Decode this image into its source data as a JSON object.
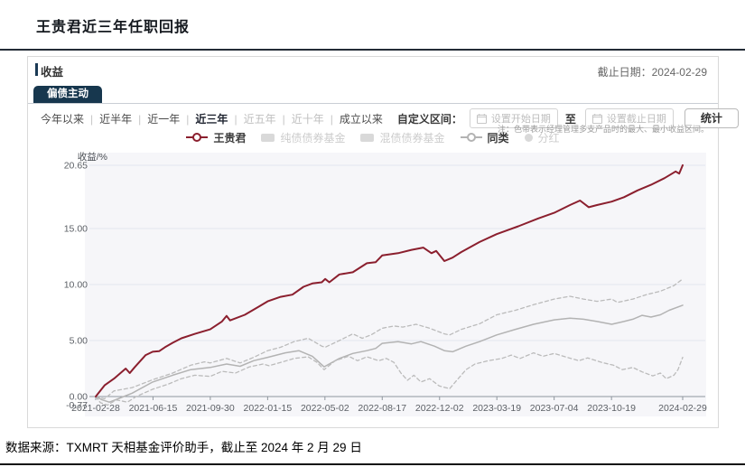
{
  "page": {
    "title": "王贵君近三年任职回报",
    "source_note": "数据来源：TXMRT 天相基金评价助手，截止至 2024 年 2 月 29 日"
  },
  "panel": {
    "section_label": "收益",
    "as_of": "截止日期：2024-02-29",
    "tab_label": "偏债主动",
    "periods": [
      {
        "label": "今年以来",
        "state": "normal"
      },
      {
        "label": "近半年",
        "state": "normal"
      },
      {
        "label": "近一年",
        "state": "normal"
      },
      {
        "label": "近三年",
        "state": "active"
      },
      {
        "label": "近五年",
        "state": "disabled"
      },
      {
        "label": "近十年",
        "state": "disabled"
      },
      {
        "label": "成立以来",
        "state": "normal"
      }
    ],
    "custom_range_label": "自定义区间：",
    "start_date_placeholder": "设置开始日期",
    "to_label": "至",
    "end_date_placeholder": "设置截止日期",
    "stats_button": "统计",
    "legend": [
      {
        "label": "王贵君",
        "marker": "line-circle",
        "color": "#8b1f2e",
        "enabled": true
      },
      {
        "label": "纯债债券基金",
        "marker": "square",
        "color": "#d9d9d9",
        "enabled": false
      },
      {
        "label": "混债债券基金",
        "marker": "square",
        "color": "#d9d9d9",
        "enabled": false
      },
      {
        "label": "同类",
        "marker": "line-circle",
        "color": "#b3b3b3",
        "enabled": true
      },
      {
        "label": "分红",
        "marker": "circle",
        "color": "#d9d9d9",
        "enabled": false
      }
    ],
    "note": "注：色带表示经理管理多支产品时的最大、最小收益区间。"
  },
  "chart_data": {
    "type": "line",
    "ylabel": "收益/%",
    "x_range": [
      "2021-02-28",
      "2024-02-29"
    ],
    "ylim": [
      -1.4,
      21.6
    ],
    "grid": true,
    "legend_position": "top",
    "plot_bg": "#f6f6f9",
    "grid_color": "#e3e6ee",
    "axis_color": "#8f969e",
    "y_ticks": [
      {
        "v": 20.65,
        "label": "20.65",
        "grid": true
      },
      {
        "v": 15.0,
        "label": "15.00",
        "grid": true
      },
      {
        "v": 10.0,
        "label": "10.00",
        "grid": true
      },
      {
        "v": 5.0,
        "label": "5.00",
        "grid": true
      },
      {
        "v": 0.0,
        "label": "0.00",
        "grid": false
      },
      {
        "v": -0.77,
        "label": "-0.77",
        "grid": false
      }
    ],
    "x_ticks": [
      {
        "t": 0.0,
        "label": "2021-02-28"
      },
      {
        "t": 0.0976,
        "label": "2021-06-15"
      },
      {
        "t": 0.1952,
        "label": "2021-09-30"
      },
      {
        "t": 0.2929,
        "label": "2022-01-15"
      },
      {
        "t": 0.3905,
        "label": "2022-05-02"
      },
      {
        "t": 0.4881,
        "label": "2022-08-17"
      },
      {
        "t": 0.5858,
        "label": "2022-12-02"
      },
      {
        "t": 0.6834,
        "label": "2023-03-19"
      },
      {
        "t": 0.781,
        "label": "2023-07-04"
      },
      {
        "t": 0.8787,
        "label": "2023-10-19"
      },
      {
        "t": 1.0,
        "label": "2024-02-29"
      }
    ],
    "series": [
      {
        "name": "王贵君",
        "color": "#8b1f2e",
        "style": "solid",
        "width": 2,
        "z": 2,
        "points": [
          [
            0,
            0
          ],
          [
            0.015,
            1.0
          ],
          [
            0.031,
            1.6
          ],
          [
            0.051,
            2.5
          ],
          [
            0.058,
            2.1
          ],
          [
            0.066,
            2.6
          ],
          [
            0.085,
            3.7
          ],
          [
            0.097,
            4.0
          ],
          [
            0.108,
            4.05
          ],
          [
            0.118,
            4.4
          ],
          [
            0.131,
            4.8
          ],
          [
            0.146,
            5.2
          ],
          [
            0.169,
            5.6
          ],
          [
            0.195,
            6.0
          ],
          [
            0.215,
            6.7
          ],
          [
            0.223,
            7.2
          ],
          [
            0.229,
            6.8
          ],
          [
            0.254,
            7.3
          ],
          [
            0.277,
            8.0
          ],
          [
            0.293,
            8.5
          ],
          [
            0.315,
            8.9
          ],
          [
            0.335,
            9.1
          ],
          [
            0.354,
            9.8
          ],
          [
            0.369,
            10.1
          ],
          [
            0.385,
            10.2
          ],
          [
            0.391,
            10.5
          ],
          [
            0.398,
            10.2
          ],
          [
            0.415,
            10.9
          ],
          [
            0.438,
            11.1
          ],
          [
            0.462,
            11.9
          ],
          [
            0.477,
            12.0
          ],
          [
            0.488,
            12.6
          ],
          [
            0.515,
            12.8
          ],
          [
            0.538,
            13.1
          ],
          [
            0.558,
            13.3
          ],
          [
            0.572,
            12.8
          ],
          [
            0.58,
            13.0
          ],
          [
            0.594,
            12.1
          ],
          [
            0.608,
            12.4
          ],
          [
            0.623,
            12.9
          ],
          [
            0.654,
            13.8
          ],
          [
            0.683,
            14.5
          ],
          [
            0.72,
            15.2
          ],
          [
            0.754,
            15.9
          ],
          [
            0.781,
            16.4
          ],
          [
            0.808,
            17.1
          ],
          [
            0.825,
            17.5
          ],
          [
            0.84,
            16.9
          ],
          [
            0.854,
            17.1
          ],
          [
            0.879,
            17.4
          ],
          [
            0.9,
            17.8
          ],
          [
            0.923,
            18.4
          ],
          [
            0.946,
            18.9
          ],
          [
            0.969,
            19.5
          ],
          [
            0.988,
            20.1
          ],
          [
            0.994,
            19.9
          ],
          [
            1.0,
            20.65
          ]
        ]
      },
      {
        "name": "最大收益区间",
        "color": "#bbbbbb",
        "style": "dashed",
        "width": 1.3,
        "z": 1,
        "points": [
          [
            0,
            0
          ],
          [
            0.015,
            -0.2
          ],
          [
            0.031,
            0.5
          ],
          [
            0.062,
            0.8
          ],
          [
            0.097,
            1.5
          ],
          [
            0.131,
            2.1
          ],
          [
            0.162,
            2.8
          ],
          [
            0.185,
            3.1
          ],
          [
            0.195,
            3.0
          ],
          [
            0.223,
            3.4
          ],
          [
            0.246,
            3.0
          ],
          [
            0.269,
            3.5
          ],
          [
            0.293,
            4.1
          ],
          [
            0.315,
            4.4
          ],
          [
            0.338,
            4.9
          ],
          [
            0.362,
            5.2
          ],
          [
            0.385,
            4.5
          ],
          [
            0.391,
            4.4
          ],
          [
            0.415,
            5.0
          ],
          [
            0.438,
            5.6
          ],
          [
            0.454,
            5.2
          ],
          [
            0.469,
            5.5
          ],
          [
            0.488,
            6.1
          ],
          [
            0.508,
            6.3
          ],
          [
            0.523,
            6.2
          ],
          [
            0.546,
            6.45
          ],
          [
            0.569,
            6.1
          ],
          [
            0.594,
            5.6
          ],
          [
            0.603,
            5.5
          ],
          [
            0.623,
            6.0
          ],
          [
            0.654,
            6.5
          ],
          [
            0.683,
            7.3
          ],
          [
            0.715,
            7.7
          ],
          [
            0.746,
            8.2
          ],
          [
            0.781,
            8.7
          ],
          [
            0.808,
            8.95
          ],
          [
            0.831,
            8.7
          ],
          [
            0.854,
            8.5
          ],
          [
            0.879,
            8.7
          ],
          [
            0.889,
            8.4
          ],
          [
            0.915,
            8.7
          ],
          [
            0.938,
            9.1
          ],
          [
            0.962,
            9.4
          ],
          [
            0.985,
            9.9
          ],
          [
            1.0,
            10.5
          ]
        ]
      },
      {
        "name": "同类",
        "color": "#b3b3b3",
        "style": "solid",
        "width": 1.5,
        "z": 1,
        "points": [
          [
            0,
            0
          ],
          [
            0.011,
            -0.3
          ],
          [
            0.023,
            -0.5
          ],
          [
            0.038,
            -0.2
          ],
          [
            0.062,
            0.3
          ],
          [
            0.097,
            1.3
          ],
          [
            0.131,
            1.9
          ],
          [
            0.162,
            2.4
          ],
          [
            0.195,
            2.6
          ],
          [
            0.223,
            2.9
          ],
          [
            0.246,
            2.7
          ],
          [
            0.269,
            3.2
          ],
          [
            0.293,
            3.5
          ],
          [
            0.323,
            3.9
          ],
          [
            0.346,
            4.1
          ],
          [
            0.369,
            3.6
          ],
          [
            0.389,
            2.65
          ],
          [
            0.415,
            3.4
          ],
          [
            0.438,
            3.85
          ],
          [
            0.462,
            4.1
          ],
          [
            0.477,
            4.3
          ],
          [
            0.488,
            4.75
          ],
          [
            0.515,
            4.9
          ],
          [
            0.538,
            4.7
          ],
          [
            0.554,
            4.9
          ],
          [
            0.577,
            4.5
          ],
          [
            0.594,
            4.1
          ],
          [
            0.608,
            4.0
          ],
          [
            0.631,
            4.5
          ],
          [
            0.654,
            4.9
          ],
          [
            0.683,
            5.5
          ],
          [
            0.715,
            6.0
          ],
          [
            0.746,
            6.45
          ],
          [
            0.781,
            6.85
          ],
          [
            0.808,
            7.0
          ],
          [
            0.831,
            6.9
          ],
          [
            0.854,
            6.7
          ],
          [
            0.879,
            6.45
          ],
          [
            0.9,
            6.7
          ],
          [
            0.915,
            6.9
          ],
          [
            0.931,
            7.25
          ],
          [
            0.946,
            7.1
          ],
          [
            0.962,
            7.3
          ],
          [
            0.977,
            7.7
          ],
          [
            1.0,
            8.15
          ]
        ]
      },
      {
        "name": "最小收益区间",
        "color": "#bbbbbb",
        "style": "dashed",
        "width": 1.3,
        "z": 1,
        "points": [
          [
            0,
            0
          ],
          [
            0.008,
            -0.55
          ],
          [
            0.02,
            -0.77
          ],
          [
            0.035,
            -0.3
          ],
          [
            0.054,
            -0.5
          ],
          [
            0.069,
            0.0
          ],
          [
            0.097,
            0.65
          ],
          [
            0.123,
            1.1
          ],
          [
            0.146,
            1.6
          ],
          [
            0.169,
            1.9
          ],
          [
            0.195,
            1.8
          ],
          [
            0.215,
            2.25
          ],
          [
            0.238,
            2.1
          ],
          [
            0.262,
            2.65
          ],
          [
            0.285,
            2.9
          ],
          [
            0.295,
            2.75
          ],
          [
            0.315,
            3.05
          ],
          [
            0.338,
            3.4
          ],
          [
            0.362,
            3.55
          ],
          [
            0.377,
            3.05
          ],
          [
            0.389,
            2.4
          ],
          [
            0.408,
            3.2
          ],
          [
            0.431,
            3.6
          ],
          [
            0.446,
            3.2
          ],
          [
            0.462,
            3.55
          ],
          [
            0.482,
            3.2
          ],
          [
            0.495,
            3.4
          ],
          [
            0.508,
            3.05
          ],
          [
            0.52,
            2.1
          ],
          [
            0.531,
            1.45
          ],
          [
            0.542,
            1.9
          ],
          [
            0.554,
            1.3
          ],
          [
            0.569,
            1.6
          ],
          [
            0.585,
            0.95
          ],
          [
            0.603,
            0.7
          ],
          [
            0.615,
            1.45
          ],
          [
            0.631,
            2.4
          ],
          [
            0.646,
            2.9
          ],
          [
            0.669,
            3.2
          ],
          [
            0.692,
            3.4
          ],
          [
            0.708,
            3.7
          ],
          [
            0.723,
            3.4
          ],
          [
            0.746,
            3.9
          ],
          [
            0.762,
            3.6
          ],
          [
            0.781,
            3.85
          ],
          [
            0.8,
            3.55
          ],
          [
            0.823,
            3.2
          ],
          [
            0.838,
            3.45
          ],
          [
            0.862,
            3.05
          ],
          [
            0.882,
            2.8
          ],
          [
            0.897,
            2.4
          ],
          [
            0.915,
            2.6
          ],
          [
            0.931,
            2.2
          ],
          [
            0.949,
            1.85
          ],
          [
            0.962,
            2.1
          ],
          [
            0.972,
            1.6
          ],
          [
            0.985,
            1.9
          ],
          [
            0.992,
            2.4
          ],
          [
            1.0,
            3.5
          ]
        ]
      }
    ]
  }
}
